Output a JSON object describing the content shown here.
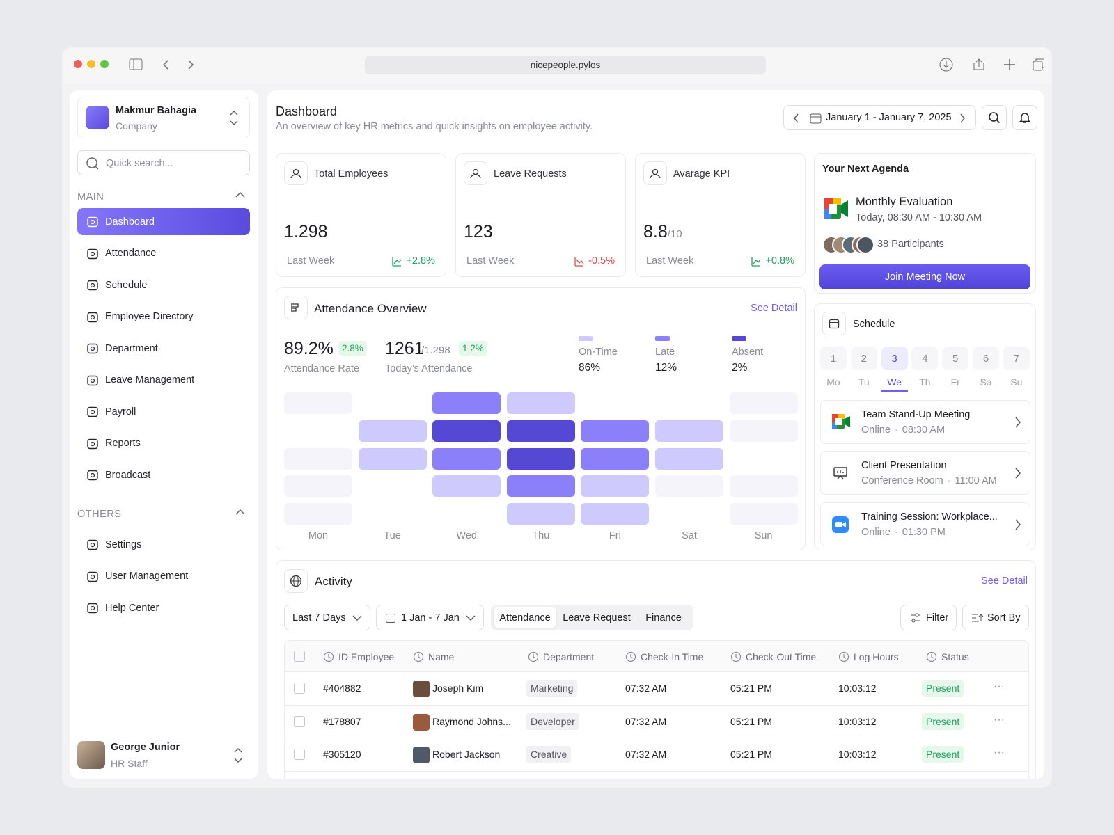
{
  "browser": {
    "url": "nicepeople.pylos"
  },
  "sidebar": {
    "company": {
      "name": "Makmur Bahagia",
      "type": "Company"
    },
    "search_placeholder": "Quick search...",
    "main_label": "MAIN",
    "main_items": [
      "Dashboard",
      "Attendance",
      "Schedule",
      "Employee Directory",
      "Department",
      "Leave Management",
      "Payroll",
      "Reports",
      "Broadcast"
    ],
    "active_item": 0,
    "others_label": "OTHERS",
    "others_items": [
      "Settings",
      "User Management",
      "Help Center"
    ],
    "user": {
      "name": "George Junior",
      "role": "HR Staff"
    }
  },
  "header": {
    "title": "Dashboard",
    "subtitle": "An overview of key HR metrics and quick insights on employee activity.",
    "date_range": "January 1 - January 7, 2025"
  },
  "stats": [
    {
      "label": "Total Employees",
      "value": "1.298",
      "period": "Last Week",
      "change": "+2.8%"
    },
    {
      "label": "Leave Requests",
      "value": "123",
      "period": "Last Week",
      "change": "-0.5%"
    },
    {
      "label": "Avarage KPI",
      "value": "8.8",
      "suffix": "/10",
      "period": "Last Week",
      "change": "+0.8%"
    }
  ],
  "attendance": {
    "title": "Attendance Overview",
    "link": "See Detail",
    "rate": "89.2%",
    "rate_change": "2.8%",
    "rate_label": "Attendance Rate",
    "today": "1261",
    "today_total": "/1.298",
    "today_change": "1.2%",
    "today_label": "Today’s Attendance",
    "legend": [
      {
        "label": "On-Time",
        "value": "86%",
        "color": "#cfcafd"
      },
      {
        "label": "Late",
        "value": "12%",
        "color": "#8b80f9"
      },
      {
        "label": "Absent",
        "value": "2%",
        "color": "#5548d4"
      }
    ],
    "days": [
      "Mon",
      "Tue",
      "Wed",
      "Thu",
      "Fri",
      "Sat",
      "Sun"
    ],
    "level_colors": [
      "transparent",
      "#f4f4fa",
      "#cfcafd",
      "#8b80f9",
      "#5548d4"
    ],
    "heatmap": [
      [
        1,
        0,
        1,
        1,
        1
      ],
      [
        0,
        2,
        2,
        0,
        0
      ],
      [
        3,
        4,
        3,
        2,
        0
      ],
      [
        2,
        4,
        4,
        3,
        2
      ],
      [
        0,
        3,
        3,
        2,
        2
      ],
      [
        0,
        2,
        2,
        1,
        0
      ],
      [
        1,
        1,
        0,
        1,
        1
      ]
    ]
  },
  "agenda": {
    "title": "Your Next Agenda",
    "event": "Monthly Evaluation",
    "time": "Today, 08:30 AM - 10:30 AM",
    "participants": "38 Participants",
    "button": "Join Meeting Now"
  },
  "schedule": {
    "title": "Schedule",
    "dates": [
      "1",
      "2",
      "3",
      "4",
      "5",
      "6",
      "7"
    ],
    "weekdays": [
      "Mo",
      "Tu",
      "We",
      "Th",
      "Fr",
      "Sa",
      "Su"
    ],
    "selected": 2,
    "events": [
      {
        "title": "Team Stand-Up Meeting",
        "place": "Online",
        "time": "08:30 AM"
      },
      {
        "title": "Client Presentation",
        "place": "Conference Room",
        "time": "11:00 AM"
      },
      {
        "title": "Training Session: Workplace...",
        "place": "Online",
        "time": "01:30 PM"
      }
    ]
  },
  "activity": {
    "title": "Activity",
    "link": "See Detail",
    "period": "Last 7 Days",
    "dates": "1 Jan - 7 Jan",
    "tabs": [
      "Attendance",
      "Leave Request",
      "Finance"
    ],
    "filter": "Filter",
    "sort": "Sort By",
    "columns": [
      "ID Employee",
      "Name",
      "Department",
      "Check-In Time",
      "Check-Out Time",
      "Log Hours",
      "Status"
    ],
    "rows": [
      [
        "#404882",
        "Joseph Kim",
        "Marketing",
        "07:32 AM",
        "05:21 PM",
        "10:03:12",
        "Present"
      ],
      [
        "#178807",
        "Raymond Johns...",
        "Developer",
        "07:32 AM",
        "05:21 PM",
        "10:03:12",
        "Present"
      ],
      [
        "#305120",
        "Robert Jackson",
        "Creative",
        "07:32 AM",
        "05:21 PM",
        "10:03:12",
        "Present"
      ]
    ]
  }
}
